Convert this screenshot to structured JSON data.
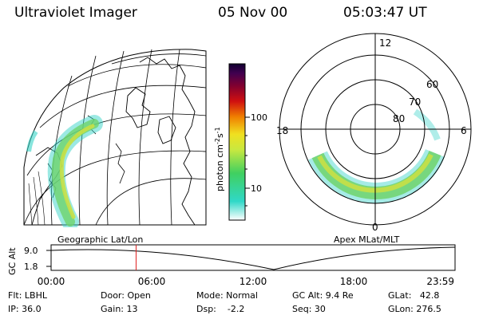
{
  "header": {
    "instrument": "Ultraviolet Imager",
    "date": "05 Nov 00",
    "time": "05:03:47 UT"
  },
  "geo_panel": {
    "label": "Geographic Lat/Lon"
  },
  "colorbar": {
    "unit": "photon cm",
    "unit_sup1": "-2",
    "unit_mid": "s",
    "unit_sup2": "-1",
    "ticks": [
      "100",
      "10"
    ]
  },
  "polar_panel": {
    "label": "Apex MLat/MLT",
    "lat_labels": [
      "60",
      "70",
      "80"
    ],
    "mlt_labels": [
      "12",
      "18",
      "6",
      "0"
    ]
  },
  "timeline": {
    "ylabel": "GC Alt",
    "yticks": [
      "9.0",
      "1.8"
    ],
    "xticks": [
      "00:00",
      "06:00",
      "12:00",
      "18:00",
      "23:59"
    ],
    "marker_hour": 5.06
  },
  "status": {
    "filter": "Flt: LBHL",
    "ip": "IP: 36.0",
    "door": "Door: Open",
    "gain": "Gain: 13",
    "mode": "Mode: Normal",
    "dsp": "Dsp:    -2.2",
    "gc_alt": "GC Alt: 9.4 Re",
    "seq": "Seq: 30",
    "glat": "GLat:   42.8",
    "glon": "GLon: 276.5"
  },
  "colors": {
    "aurora_dim": "#37d3c7",
    "aurora_mid": "#6ed36b",
    "aurora_bright": "#c8e046",
    "marker": "#e02020"
  }
}
